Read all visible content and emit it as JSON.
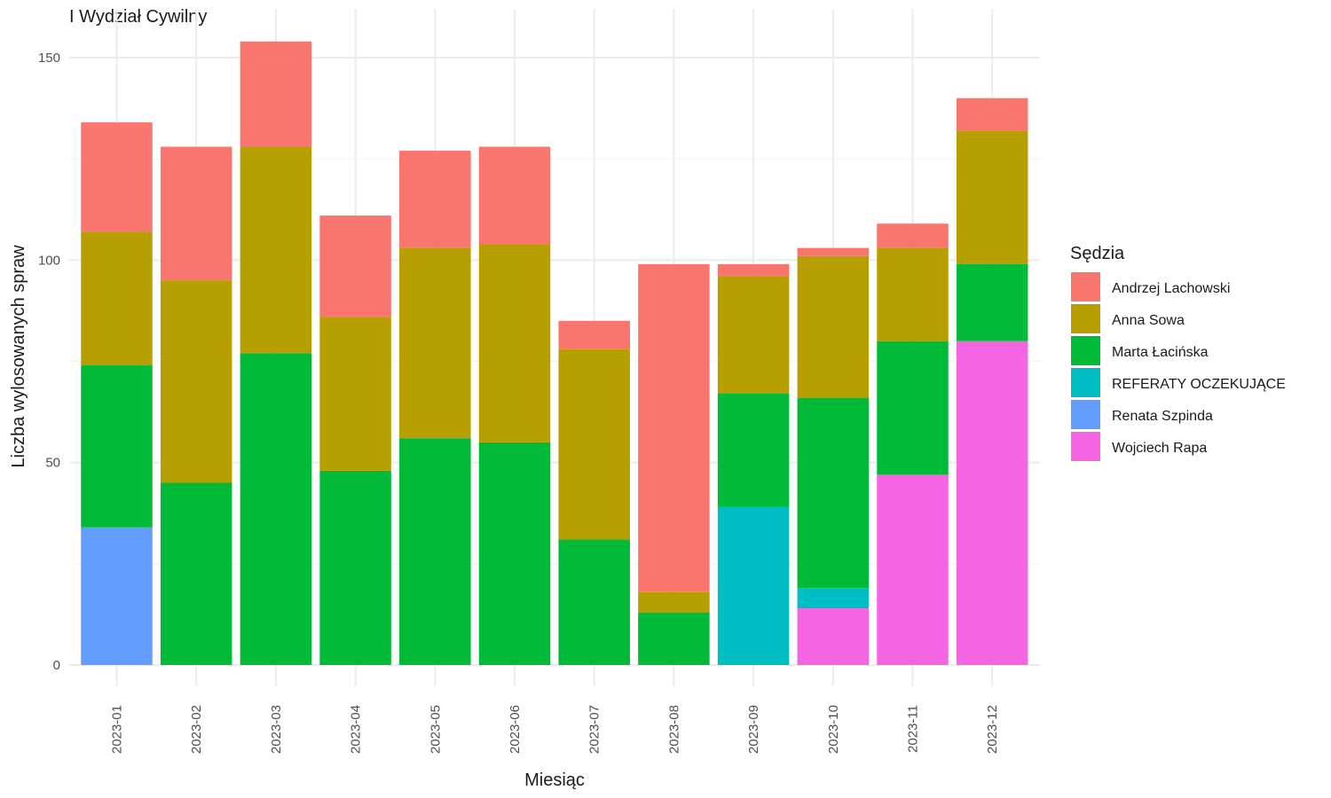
{
  "chart_data": {
    "type": "bar",
    "stacked": true,
    "title": "I Wydział Cywilny",
    "xlabel": "Miesiąc",
    "ylabel": "Liczba wylosowanych spraw",
    "ylim": [
      0,
      160
    ],
    "yticks": [
      0,
      50,
      100,
      150
    ],
    "grid": true,
    "legend_title": "Sędzia",
    "legend_position": "right",
    "categories": [
      "2023-01",
      "2023-02",
      "2023-03",
      "2023-04",
      "2023-05",
      "2023-06",
      "2023-07",
      "2023-08",
      "2023-09",
      "2023-10",
      "2023-11",
      "2023-12"
    ],
    "series": [
      {
        "name": "Andrzej Lachowski",
        "color": "#F8766D",
        "values": [
          27,
          33,
          26,
          25,
          24,
          24,
          7,
          81,
          3,
          2,
          6,
          8
        ]
      },
      {
        "name": "Anna Sowa",
        "color": "#B79F00",
        "values": [
          33,
          50,
          51,
          38,
          47,
          49,
          47,
          5,
          29,
          35,
          23,
          33
        ]
      },
      {
        "name": "Marta Łacińska",
        "color": "#00BA38",
        "values": [
          40,
          45,
          77,
          48,
          56,
          55,
          31,
          13,
          28,
          47,
          33,
          19
        ]
      },
      {
        "name": "REFERATY OCZEKUJĄCE",
        "color": "#00BFC4",
        "values": [
          0,
          0,
          0,
          0,
          0,
          0,
          0,
          0,
          39,
          5,
          0,
          0
        ]
      },
      {
        "name": "Renata Szpinda",
        "color": "#619CFF",
        "values": [
          34,
          0,
          0,
          0,
          0,
          0,
          0,
          0,
          0,
          0,
          0,
          0
        ]
      },
      {
        "name": "Wojciech Rapa",
        "color": "#F564E3",
        "values": [
          0,
          0,
          0,
          0,
          0,
          0,
          0,
          0,
          0,
          14,
          47,
          80
        ]
      }
    ]
  }
}
